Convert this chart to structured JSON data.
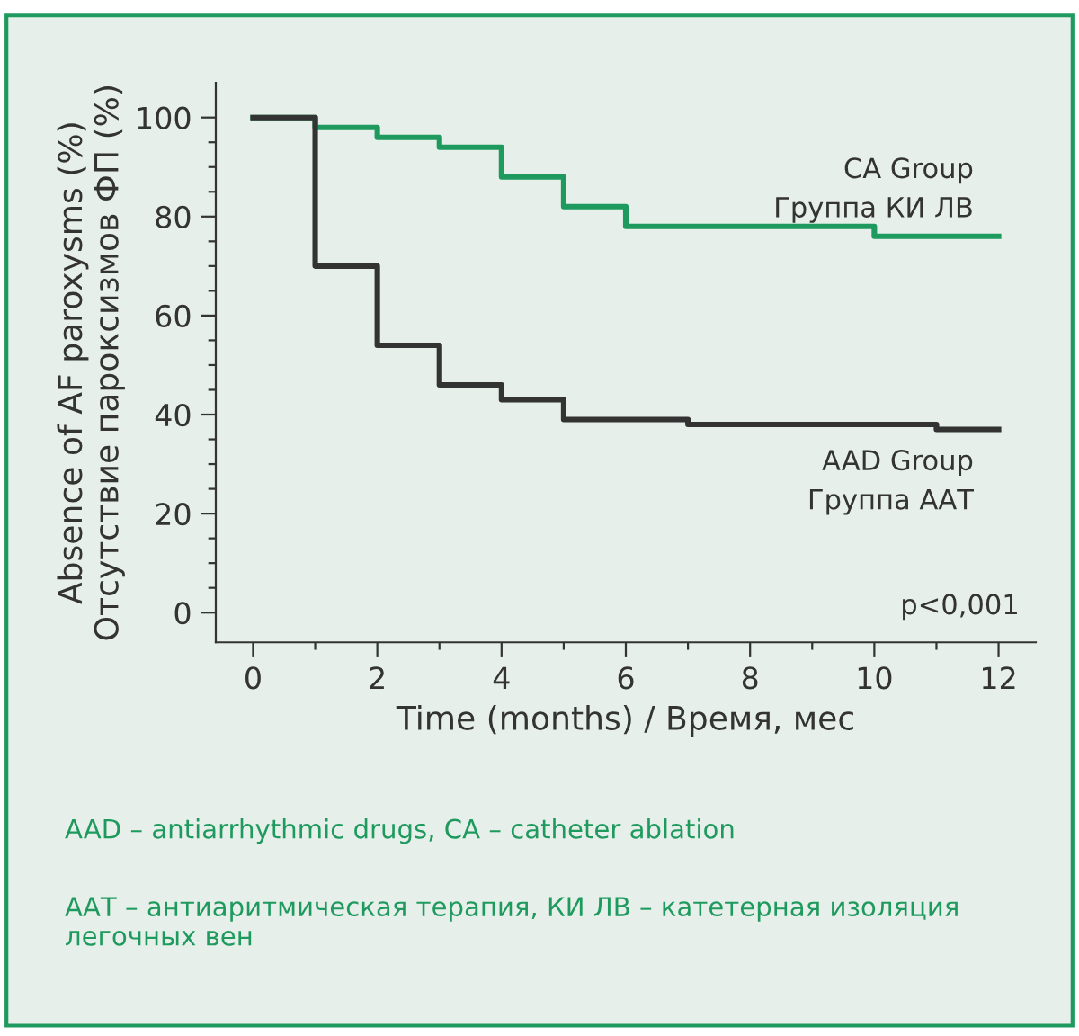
{
  "chart_data": {
    "type": "step",
    "xlabel": "Time (months) / Время, мес",
    "ylabel": "Absence of AF paroxysms (%)\nОтсутствие пароксизмов ФП (%)",
    "series": [
      {
        "name": "CA Group\nГруппа КИ ЛВ",
        "color": "#1f9a5e",
        "x": [
          0,
          1,
          2,
          3,
          4,
          5,
          6,
          10,
          12
        ],
        "values": [
          100,
          98,
          96,
          94,
          88,
          82,
          78,
          76,
          76
        ]
      },
      {
        "name": "AAD Group\nГруппа ААТ",
        "color": "#333333",
        "x": [
          0,
          1,
          2,
          3,
          4,
          5,
          7,
          11,
          12
        ],
        "values": [
          100,
          70,
          54,
          46,
          43,
          39,
          38,
          37,
          37
        ]
      }
    ],
    "xlim": [
      -0.6,
      12.6
    ],
    "ylim": [
      -6,
      107
    ],
    "xticks": [
      0,
      {
        "value": 1,
        "label": null
      },
      2,
      {
        "value": 3,
        "label": null
      },
      4,
      {
        "value": 5,
        "label": null
      },
      6,
      {
        "value": 7,
        "label": null
      },
      8,
      {
        "value": 9,
        "label": null
      },
      10,
      {
        "value": 11,
        "label": null
      },
      12
    ],
    "yticks": [
      0,
      {
        "value": 5,
        "label": null
      },
      {
        "value": 10,
        "label": null
      },
      {
        "value": 15,
        "label": null
      },
      20,
      {
        "value": 25,
        "label": null
      },
      {
        "value": 30,
        "label": null
      },
      {
        "value": 35,
        "label": null
      },
      40,
      {
        "value": 45,
        "label": null
      },
      {
        "value": 50,
        "label": null
      },
      {
        "value": 55,
        "label": null
      },
      60,
      {
        "value": 65,
        "label": null
      },
      {
        "value": 70,
        "label": null
      },
      {
        "value": 75,
        "label": null
      },
      80,
      {
        "value": 85,
        "label": null
      },
      {
        "value": 90,
        "label": null
      },
      {
        "value": 95,
        "label": null
      },
      100
    ],
    "grid": false,
    "marker": "none",
    "line_style": "solid",
    "annotations": [
      "p<0,001",
      "AAD – antiarrhythmic drugs, CA – catheter ablation",
      "ААТ – антиаритмическая терапия, КИ ЛВ – катетерная изоляция легочных вен"
    ]
  }
}
